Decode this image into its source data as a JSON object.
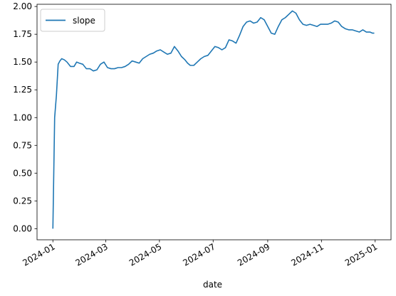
{
  "chart_data": {
    "type": "line",
    "xlabel": "date",
    "ylabel": "",
    "title": "",
    "ylim": [
      -0.1,
      2.02
    ],
    "xlim": [
      "2023-12-14",
      "2025-01-19"
    ],
    "grid": false,
    "legend_position": "upper left",
    "yticks": [
      "0.00",
      "0.25",
      "0.50",
      "0.75",
      "1.00",
      "1.25",
      "1.50",
      "1.75",
      "2.00"
    ],
    "xticks": [
      "2024-01",
      "2024-03",
      "2024-05",
      "2024-07",
      "2024-09",
      "2024-11",
      "2025-01"
    ],
    "series": [
      {
        "name": "slope",
        "color": "#1f77b4",
        "x": [
          "2024-01-01",
          "2024-01-03",
          "2024-01-05",
          "2024-01-07",
          "2024-01-09",
          "2024-01-11",
          "2024-01-14",
          "2024-01-17",
          "2024-01-21",
          "2024-01-25",
          "2024-01-28",
          "2024-01-31",
          "2024-02-04",
          "2024-02-08",
          "2024-02-12",
          "2024-02-16",
          "2024-02-20",
          "2024-02-24",
          "2024-02-28",
          "2024-03-03",
          "2024-03-07",
          "2024-03-11",
          "2024-03-15",
          "2024-03-19",
          "2024-03-23",
          "2024-03-27",
          "2024-03-31",
          "2024-04-04",
          "2024-04-08",
          "2024-04-12",
          "2024-04-16",
          "2024-04-20",
          "2024-04-24",
          "2024-04-28",
          "2024-05-02",
          "2024-05-06",
          "2024-05-10",
          "2024-05-14",
          "2024-05-18",
          "2024-05-22",
          "2024-05-26",
          "2024-05-30",
          "2024-06-02",
          "2024-06-05",
          "2024-06-09",
          "2024-06-13",
          "2024-06-17",
          "2024-06-21",
          "2024-06-25",
          "2024-06-29",
          "2024-07-03",
          "2024-07-07",
          "2024-07-11",
          "2024-07-15",
          "2024-07-19",
          "2024-07-23",
          "2024-07-27",
          "2024-07-31",
          "2024-08-04",
          "2024-08-08",
          "2024-08-12",
          "2024-08-16",
          "2024-08-20",
          "2024-08-24",
          "2024-08-28",
          "2024-09-01",
          "2024-09-05",
          "2024-09-09",
          "2024-09-13",
          "2024-09-17",
          "2024-09-21",
          "2024-09-25",
          "2024-09-29",
          "2024-10-03",
          "2024-10-07",
          "2024-10-11",
          "2024-10-15",
          "2024-10-19",
          "2024-10-23",
          "2024-10-27",
          "2024-10-31",
          "2024-11-04",
          "2024-11-08",
          "2024-11-12",
          "2024-11-16",
          "2024-11-20",
          "2024-11-24",
          "2024-11-28",
          "2024-12-02",
          "2024-12-06",
          "2024-12-10",
          "2024-12-14",
          "2024-12-18",
          "2024-12-22",
          "2024-12-26",
          "2024-12-29",
          "2024-12-31"
        ],
        "y": [
          0.0,
          1.0,
          1.2,
          1.48,
          1.51,
          1.53,
          1.52,
          1.5,
          1.46,
          1.46,
          1.5,
          1.49,
          1.48,
          1.44,
          1.44,
          1.42,
          1.43,
          1.48,
          1.5,
          1.45,
          1.44,
          1.44,
          1.45,
          1.45,
          1.46,
          1.48,
          1.51,
          1.5,
          1.49,
          1.53,
          1.55,
          1.57,
          1.58,
          1.6,
          1.61,
          1.59,
          1.57,
          1.58,
          1.64,
          1.6,
          1.55,
          1.52,
          1.49,
          1.47,
          1.47,
          1.5,
          1.53,
          1.55,
          1.56,
          1.6,
          1.64,
          1.63,
          1.61,
          1.63,
          1.7,
          1.69,
          1.67,
          1.74,
          1.82,
          1.86,
          1.87,
          1.85,
          1.86,
          1.9,
          1.88,
          1.82,
          1.76,
          1.75,
          1.82,
          1.88,
          1.9,
          1.93,
          1.96,
          1.94,
          1.88,
          1.84,
          1.83,
          1.84,
          1.83,
          1.82,
          1.84,
          1.84,
          1.84,
          1.85,
          1.87,
          1.86,
          1.82,
          1.8,
          1.79,
          1.79,
          1.78,
          1.77,
          1.79,
          1.77,
          1.77,
          1.76,
          1.76
        ]
      }
    ]
  }
}
